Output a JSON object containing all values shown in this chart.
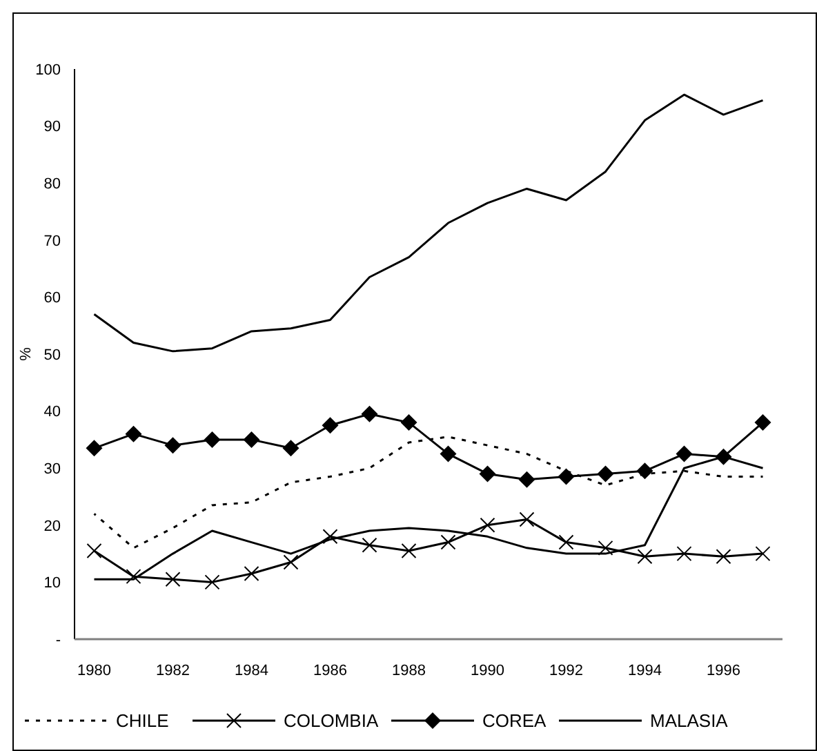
{
  "chart_data": {
    "type": "line",
    "ylabel": "%",
    "categories": [
      "1980",
      null,
      "1982",
      null,
      "1984",
      null,
      "1986",
      null,
      "1988",
      null,
      "1990",
      null,
      "1992",
      null,
      "1994",
      null,
      "1996",
      null
    ],
    "ylim": [
      0,
      100
    ],
    "yticks": [
      {
        "value": 0,
        "label": "-"
      },
      10,
      20,
      30,
      40,
      50,
      60,
      70,
      80,
      90,
      100
    ],
    "grid": false,
    "legend": "bottom",
    "series": [
      {
        "name": "CHILE",
        "color": "#000000",
        "line_style": "dotted",
        "marker": "none",
        "values": [
          22,
          16,
          19.5,
          23.5,
          24,
          27.5,
          28.5,
          30,
          34.5,
          35.5,
          34,
          32.5,
          29.5,
          27,
          29,
          29.5,
          28.5,
          28.5
        ]
      },
      {
        "name": "COLOMBIA",
        "color": "#000000",
        "line_style": "solid",
        "marker": "cross",
        "values": [
          15.5,
          11,
          10.5,
          10,
          11.5,
          13.5,
          18,
          16.5,
          15.5,
          17,
          20,
          21,
          17,
          16,
          14.5,
          15,
          14.5,
          15
        ]
      },
      {
        "name": "COREA",
        "color": "#000000",
        "line_style": "solid",
        "marker": "diamond",
        "values": [
          33.5,
          36,
          34,
          35,
          35,
          33.5,
          37.5,
          39.5,
          38,
          32.5,
          29,
          28,
          28.5,
          29,
          29.5,
          32.5,
          32,
          38
        ]
      },
      {
        "name": "MALASIA",
        "color": "#000000",
        "line_style": "solid",
        "marker": "none",
        "values": [
          57,
          52,
          50.5,
          51,
          54,
          54.5,
          56,
          63.5,
          67,
          73,
          76.5,
          79,
          77,
          82,
          91,
          95.5,
          92,
          94.5
        ]
      },
      {
        "color": "#000000",
        "line_style": "solid",
        "marker": "none",
        "values": [
          10.5,
          10.5,
          15,
          19,
          17,
          15,
          17.5,
          19,
          19.5,
          19,
          18,
          16,
          15,
          15,
          16.5,
          30,
          32,
          30
        ]
      }
    ]
  }
}
